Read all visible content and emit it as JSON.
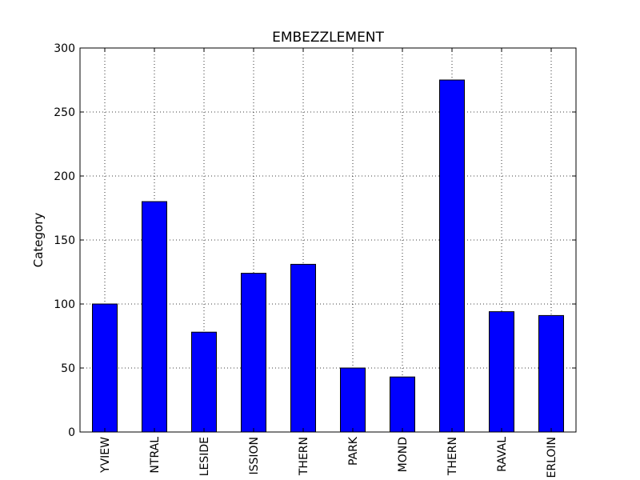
{
  "chart_data": {
    "type": "bar",
    "title": "EMBEZZLEMENT",
    "xlabel": "",
    "ylabel": "Category",
    "categories": [
      "YVIEW",
      "NTRAL",
      "LESIDE",
      "ISSION",
      "THERN",
      "PARK",
      "MOND",
      "THERN",
      "RAVAL",
      "ERLOIN"
    ],
    "values": [
      100,
      180,
      78,
      124,
      131,
      50,
      43,
      275,
      94,
      91
    ],
    "ylim": [
      0,
      300
    ],
    "yticks": [
      0,
      50,
      100,
      150,
      200,
      250,
      300
    ],
    "grid": true,
    "bar_color": "#0000ff",
    "legend": "none"
  }
}
